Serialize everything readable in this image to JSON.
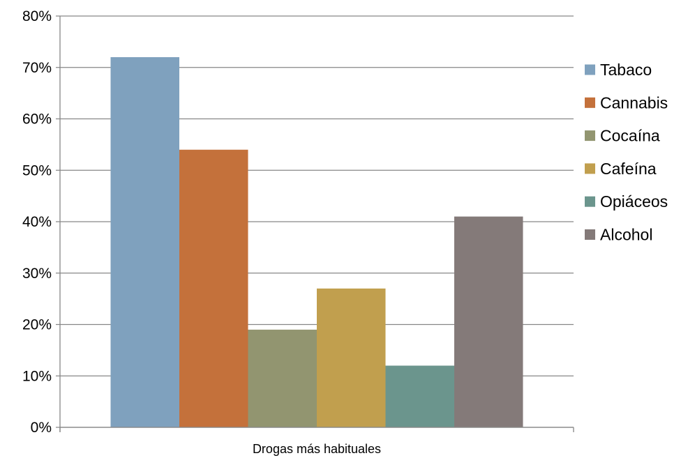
{
  "chart_data": {
    "type": "bar",
    "categories": [
      "Drogas más habituales"
    ],
    "series": [
      {
        "name": "Tabaco",
        "values": [
          72
        ],
        "color": "#7FA1BE"
      },
      {
        "name": "Cannabis",
        "values": [
          54
        ],
        "color": "#C4713B"
      },
      {
        "name": "Cocaína",
        "values": [
          19
        ],
        "color": "#929570"
      },
      {
        "name": "Cafeína",
        "values": [
          27
        ],
        "color": "#C19F4E"
      },
      {
        "name": "Opiáceos",
        "values": [
          12
        ],
        "color": "#6B958D"
      },
      {
        "name": "Alcohol",
        "values": [
          41
        ],
        "color": "#847A79"
      }
    ],
    "ylim": [
      0,
      80
    ],
    "yticks": [
      "0%",
      "10%",
      "20%",
      "30%",
      "40%",
      "50%",
      "60%",
      "70%",
      "80%"
    ],
    "grid": true,
    "legend": "right"
  }
}
